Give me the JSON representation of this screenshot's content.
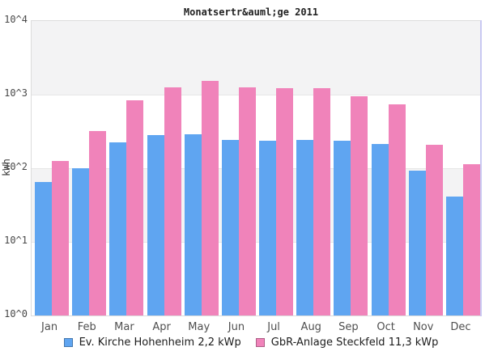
{
  "chart_data": {
    "type": "bar",
    "title": "Monatsertr&auml;ge 2011",
    "ylabel": "kWh",
    "y_scale": "log10",
    "y_exp_range": [
      0,
      4
    ],
    "y_ticks": [
      "10^4",
      "10^3",
      "10^2",
      "10^1",
      "10^0"
    ],
    "grid": "horizontal decade lines, alternating gray/white decade bands",
    "legend_position": "bottom",
    "categories": [
      "Jan",
      "Feb",
      "Mar",
      "Apr",
      "May",
      "Jun",
      "Jul",
      "Aug",
      "Sep",
      "Oct",
      "Nov",
      "Dec"
    ],
    "series": [
      {
        "name": "Ev. Kirche Hohenheim 2,2 kWp",
        "color": "#5fa5f1",
        "values": [
          65,
          100,
          225,
          285,
          290,
          245,
          235,
          245,
          235,
          215,
          92,
          41
        ]
      },
      {
        "name": "GbR-Anlage Steckfeld 11,3 kWp",
        "color": "#f083ba",
        "values": [
          125,
          320,
          830,
          1260,
          1540,
          1260,
          1230,
          1210,
          960,
          730,
          210,
          113
        ]
      }
    ],
    "unit": "kWh"
  }
}
